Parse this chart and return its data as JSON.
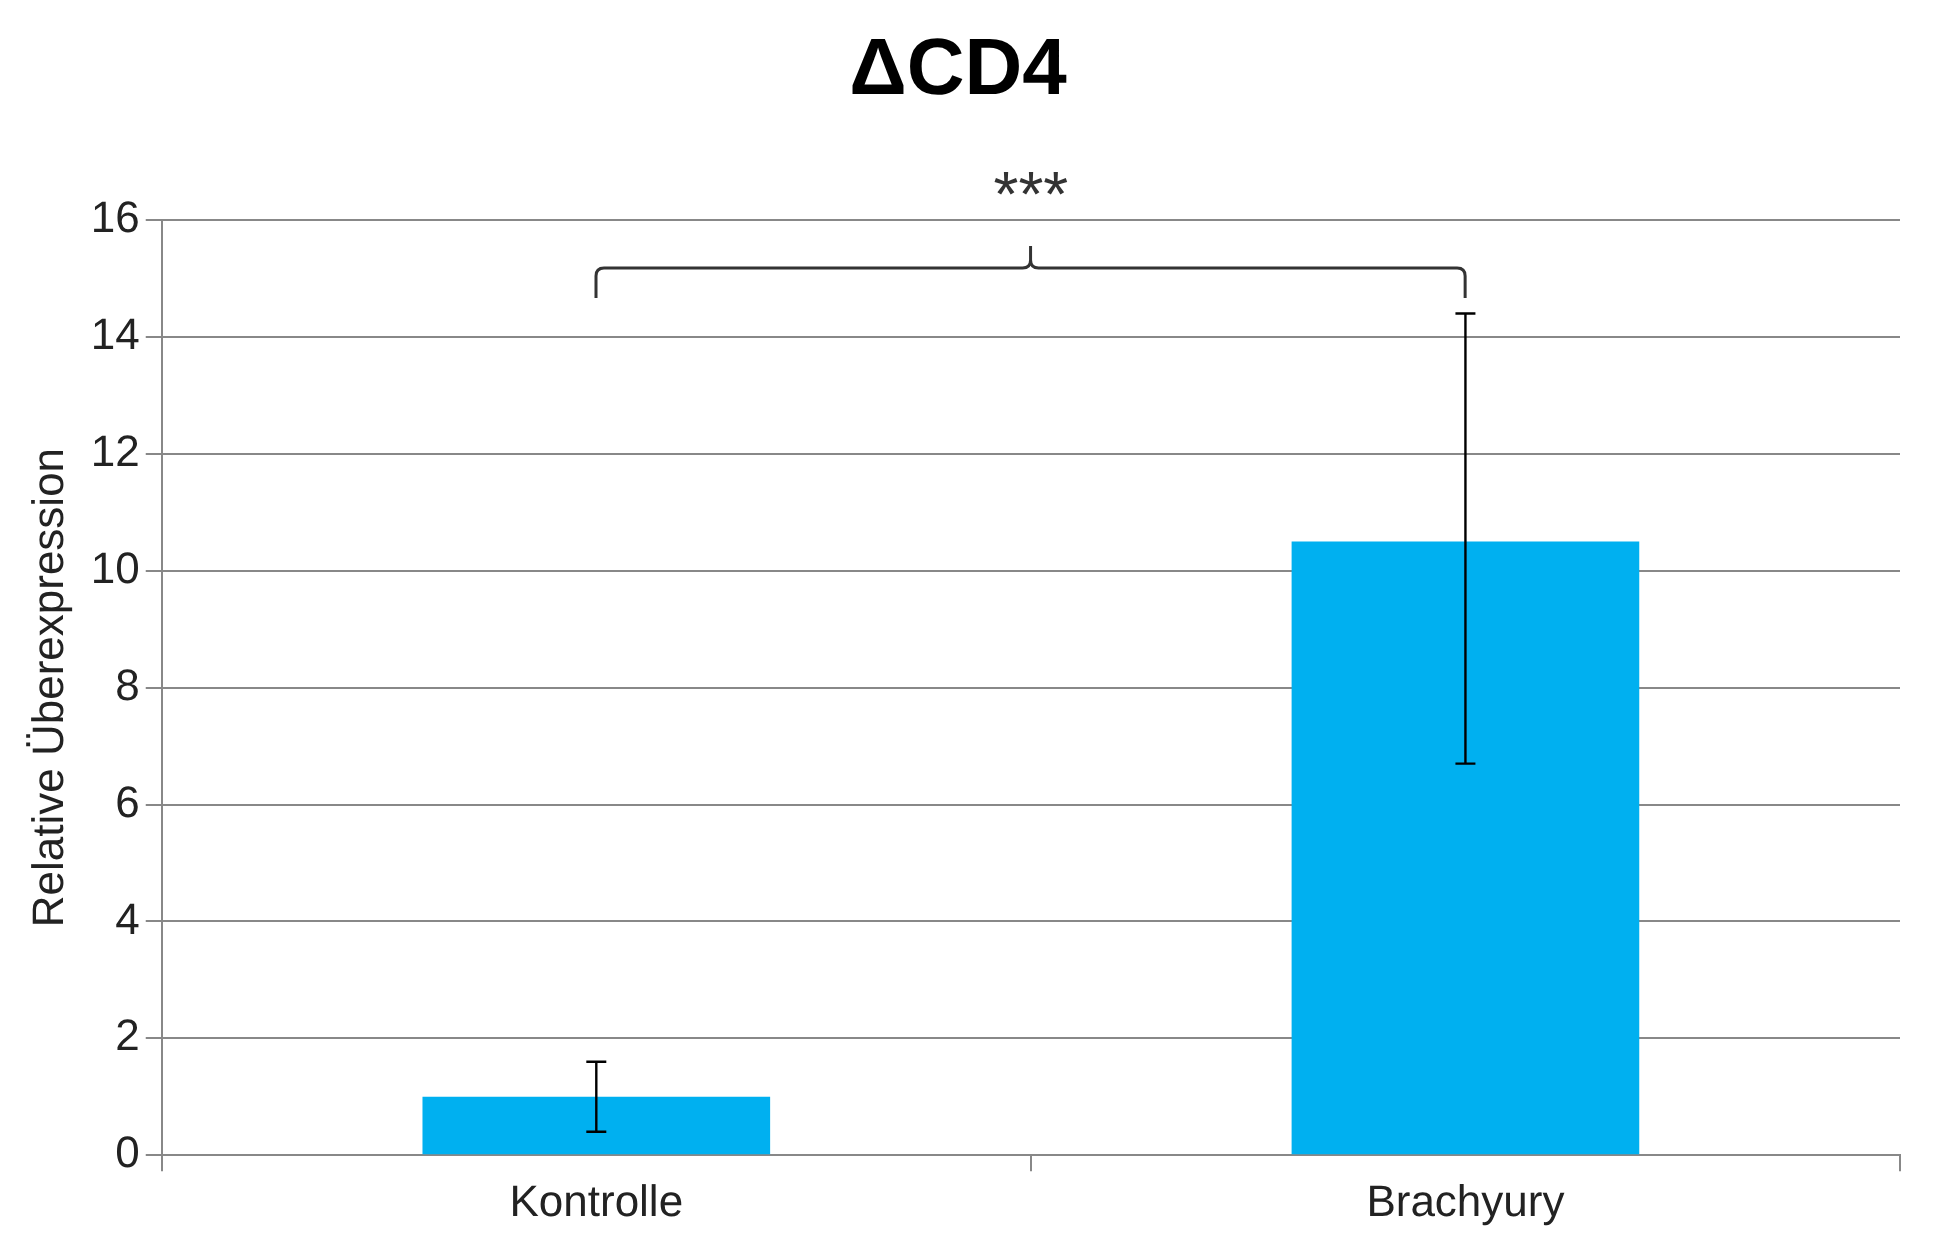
{
  "chart_data": {
    "type": "bar",
    "title": "ΔCD4",
    "ylabel": "Relative Überexpression",
    "categories": [
      "Kontrolle",
      "Brachyury"
    ],
    "values": [
      1.0,
      10.5
    ],
    "color": "#00b0f0",
    "errors": [
      [
        0.4,
        1.6
      ],
      [
        6.7,
        14.4
      ]
    ],
    "ylim": [
      0,
      16
    ],
    "yticks": [
      0,
      2,
      4,
      6,
      8,
      10,
      12,
      14,
      16
    ],
    "grid": "y",
    "annotations": [
      "***"
    ]
  }
}
